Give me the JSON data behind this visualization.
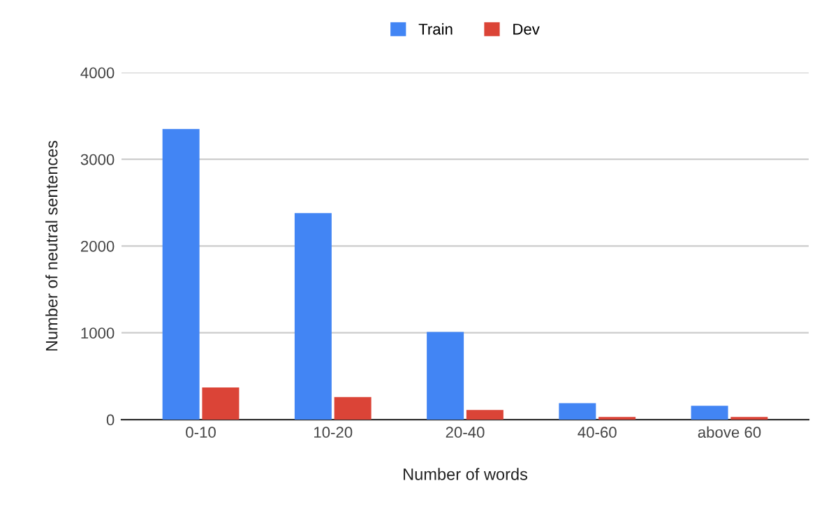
{
  "chart_data": {
    "type": "bar",
    "xlabel": "Number of words",
    "ylabel": "Number of neutral sentences",
    "categories": [
      "0-10",
      "10-20",
      "20-40",
      "40-60",
      "above 60"
    ],
    "series": [
      {
        "name": "Train",
        "color": "#4285f4",
        "values": [
          3350,
          2380,
          1010,
          190,
          160
        ]
      },
      {
        "name": "Dev",
        "color": "#db4437",
        "values": [
          370,
          260,
          110,
          30,
          30
        ]
      }
    ],
    "ylim": [
      0,
      4000
    ],
    "yticks": [
      0,
      1000,
      2000,
      3000,
      4000
    ],
    "grid": "y",
    "legend": "top"
  }
}
